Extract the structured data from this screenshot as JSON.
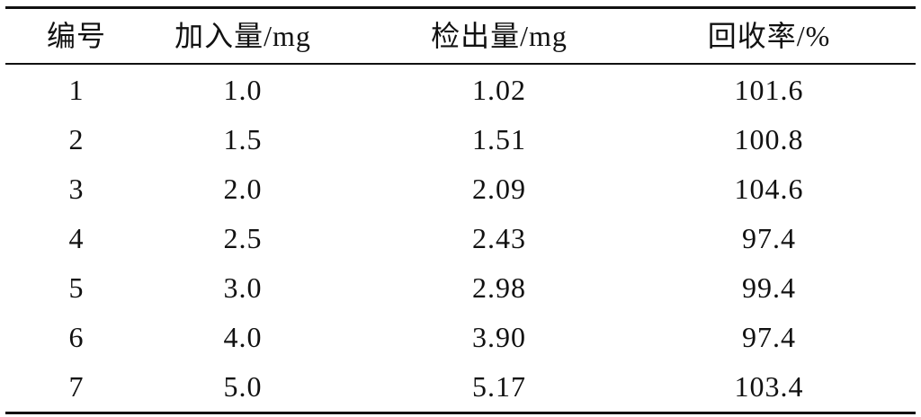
{
  "table": {
    "header": [
      "编号",
      "加入量/mg",
      "检出量/mg",
      "回收率/%"
    ],
    "rows": [
      [
        "1",
        "1.0",
        "1.02",
        "101.6"
      ],
      [
        "2",
        "1.5",
        "1.51",
        "100.8"
      ],
      [
        "3",
        "2.0",
        "2.09",
        "104.6"
      ],
      [
        "4",
        "2.5",
        "2.43",
        "97.4"
      ],
      [
        "5",
        "3.0",
        "2.98",
        "99.4"
      ],
      [
        "6",
        "4.0",
        "3.90",
        "97.4"
      ],
      [
        "7",
        "5.0",
        "5.17",
        "103.4"
      ]
    ]
  }
}
